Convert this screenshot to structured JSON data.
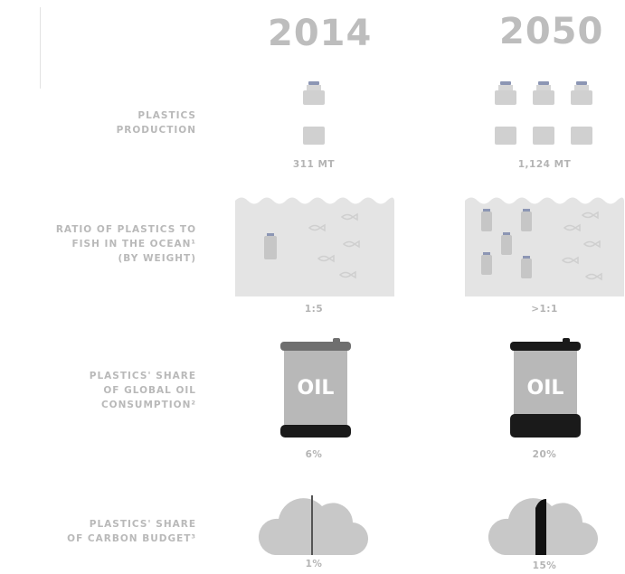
{
  "years": {
    "left": "2014",
    "right": "2050"
  },
  "rows": {
    "production": {
      "label": "PLASTICS\nPRODUCTION",
      "left_value": "311 MT",
      "right_value": "1,124 MT"
    },
    "ratio": {
      "label": "RATIO OF PLASTICS TO\nFISH IN THE OCEAN¹\n(BY WEIGHT)",
      "left_value": "1:5",
      "right_value": ">1:1"
    },
    "oil": {
      "label": "PLASTICS' SHARE\nOF GLOBAL OIL\nCONSUMPTION²",
      "barrel_text": "OIL",
      "left_value": "6%",
      "right_value": "20%",
      "left_share": 0.06,
      "right_share": 0.2
    },
    "carbon": {
      "label": "PLASTICS' SHARE\nOF CARBON BUDGET³",
      "left_value": "1%",
      "right_value": "15%",
      "left_share": 0.01,
      "right_share": 0.15
    }
  },
  "icons": {
    "production": "plastic-bottle-icon",
    "ocean": "ocean-icon",
    "fish": "fish-icon",
    "oil": "oil-barrel-icon",
    "carbon": "cloud-icon"
  },
  "colors": {
    "icon_gray": "#cfcfcf",
    "cap_blue": "#8c96b4",
    "barrel_band": "#1a1a1a",
    "text_gray": "#b9b9b9"
  }
}
